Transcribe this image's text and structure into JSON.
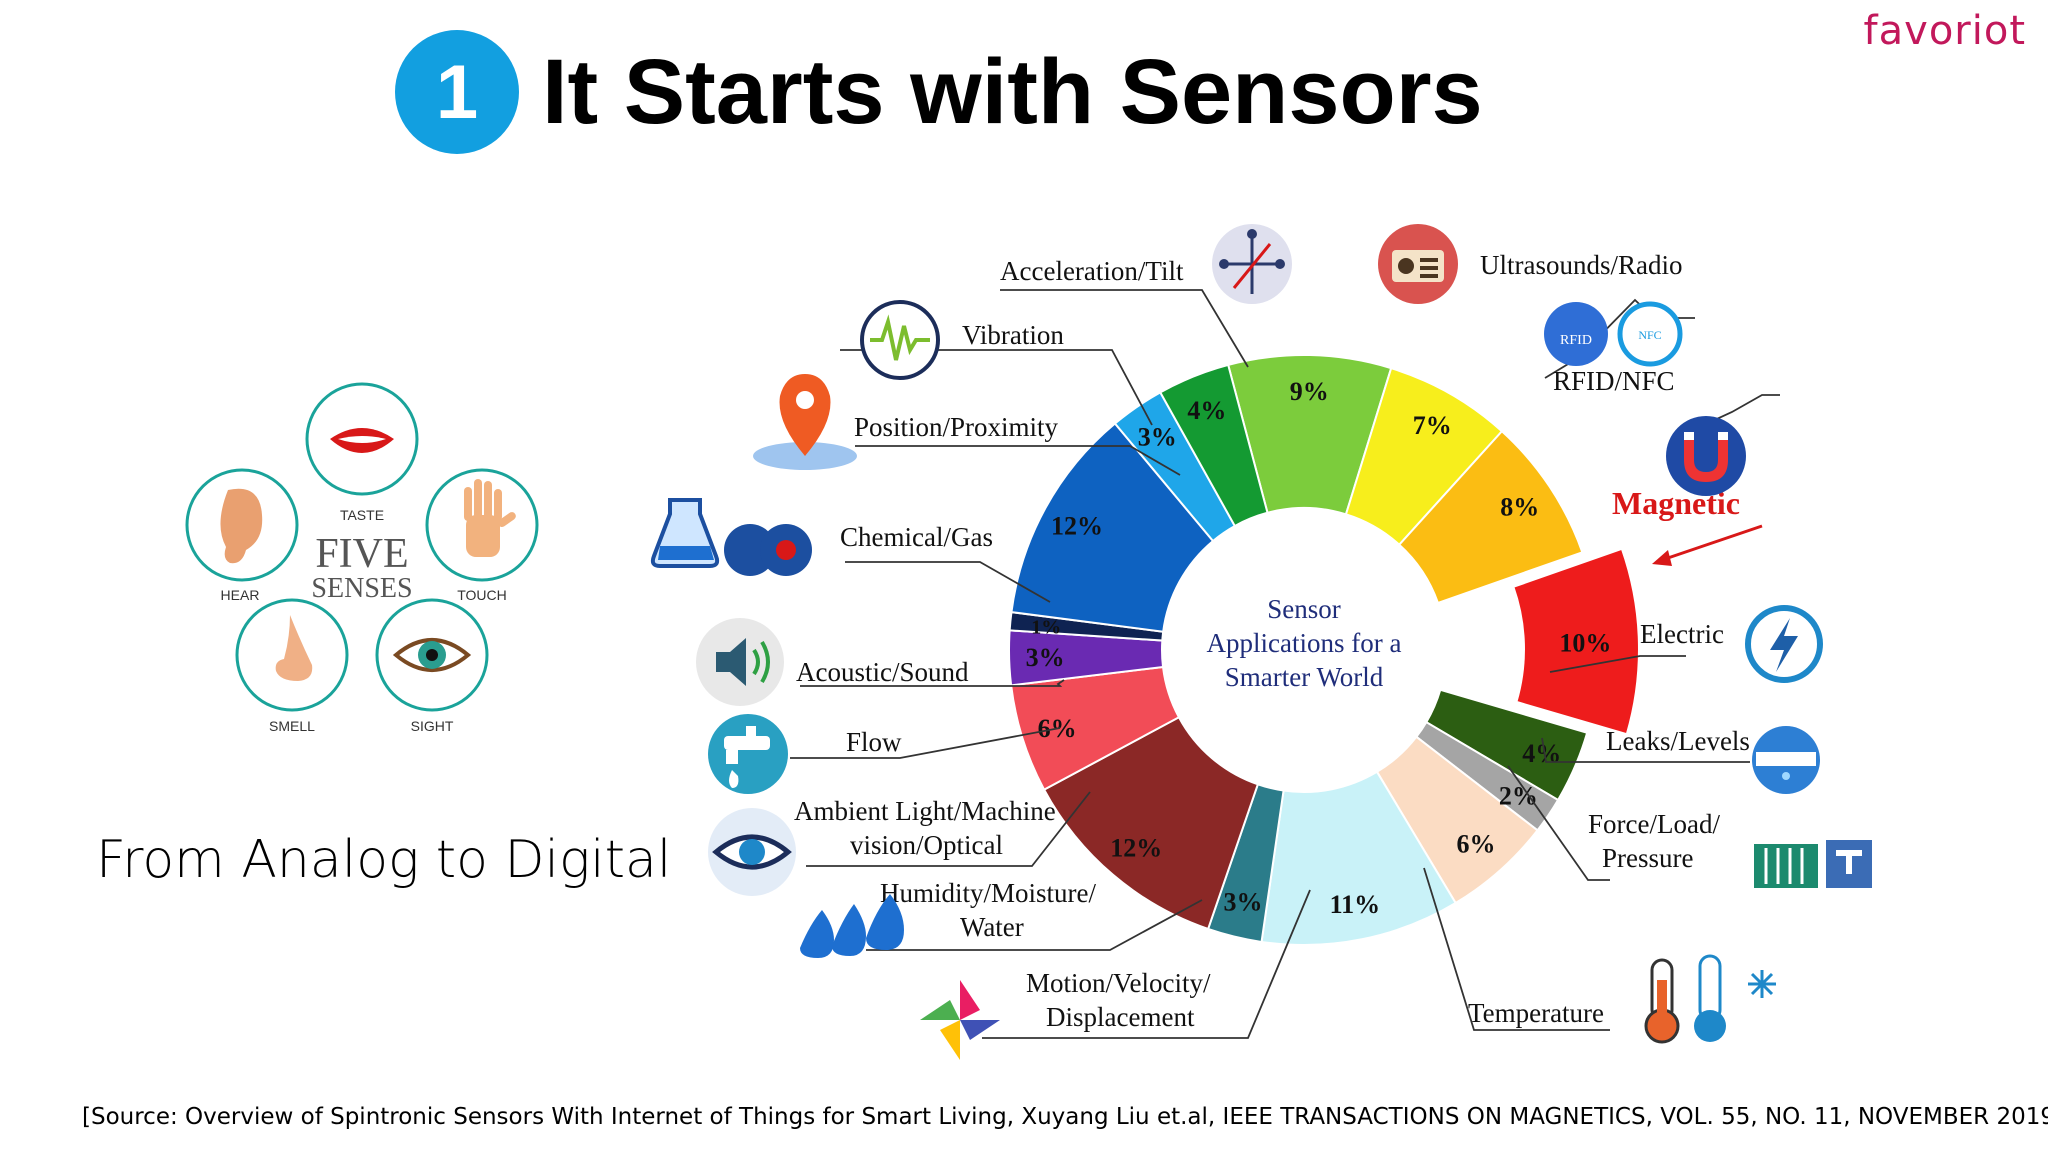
{
  "brand": "favoriot",
  "header": {
    "badge_number": "1",
    "title": "It Starts with Sensors"
  },
  "senses": {
    "title_line1": "FIVE",
    "title_line2": "SENSES",
    "items": [
      {
        "label": "TASTE",
        "icon": "lips-icon"
      },
      {
        "label": "HEAR",
        "icon": "ear-icon"
      },
      {
        "label": "TOUCH",
        "icon": "hand-icon"
      },
      {
        "label": "SMELL",
        "icon": "nose-icon"
      },
      {
        "label": "SIGHT",
        "icon": "eye-icon"
      }
    ]
  },
  "caption": "From Analog to Digital",
  "source": "[Source: Overview of Spintronic Sensors With Internet of Things for Smart Living, Xuyang Liu et.al, IEEE TRANSACTIONS ON MAGNETICS, VOL. 55, NO. 11, NOVEMBER 2019]",
  "chart_data": {
    "type": "pie",
    "center_text": [
      "Sensor",
      "Applications for a",
      "Smarter World"
    ],
    "unit": "%",
    "slices": [
      {
        "name": "Acceleration/Tilt",
        "value": 9,
        "color": "#7ccc3c"
      },
      {
        "name": "Ultrasounds/Radio",
        "value": 7,
        "color": "#f7ee1c"
      },
      {
        "name": "RFID/NFC",
        "value": 8,
        "color": "#fbbd13"
      },
      {
        "name": "Magnetic",
        "value": 10,
        "color": "#ee1c1c",
        "highlight": true
      },
      {
        "name": "Electric",
        "value": 4,
        "color": "#2c5e12"
      },
      {
        "name": "Leaks/Levels",
        "value": 2,
        "color": "#a5a5a5"
      },
      {
        "name": "Force/Load/Pressure",
        "value": 6,
        "color": "#fbdcc3"
      },
      {
        "name": "Temperature",
        "value": 11,
        "color": "#c9f2f8"
      },
      {
        "name": "Motion/Velocity/Displacement",
        "value": 3,
        "color": "#2b7c8a"
      },
      {
        "name": "Humidity/Moisture/Water",
        "value": 12,
        "color": "#8b2826"
      },
      {
        "name": "Ambient Light/Machine vision/Optical",
        "value": 6,
        "color": "#f24c57"
      },
      {
        "name": "Flow",
        "value": 3,
        "color": "#6a2ab2"
      },
      {
        "name": "Acoustic/Sound",
        "value": 1,
        "color": "#0f2352"
      },
      {
        "name": "Chemical/Gas",
        "value": 12,
        "color": "#0e62c1"
      },
      {
        "name": "Position/Proximity",
        "value": 3,
        "color": "#1fa6e9"
      },
      {
        "name": "Vibration",
        "value": 4,
        "color": "#149a32"
      }
    ]
  },
  "labels": {
    "acceleration": "Acceleration/Tilt",
    "ultrasounds": "Ultrasounds/Radio",
    "rfid": "RFID/NFC",
    "magnetic": "Magnetic",
    "electric": "Electric",
    "leaks": "Leaks/Levels",
    "force_1": "Force/Load/",
    "force_2": "Pressure",
    "temperature": "Temperature",
    "motion_1": "Motion/Velocity/",
    "motion_2": "Displacement",
    "humidity_1": "Humidity/Moisture/",
    "humidity_2": "Water",
    "ambient_1": "Ambient Light/Machine",
    "ambient_2": "vision/Optical",
    "flow": "Flow",
    "acoustic": "Acoustic/Sound",
    "chemical": "Chemical/Gas",
    "position": "Position/Proximity",
    "vibration": "Vibration",
    "rfid_badge": "RFID",
    "nfc_badge": "NFC"
  }
}
